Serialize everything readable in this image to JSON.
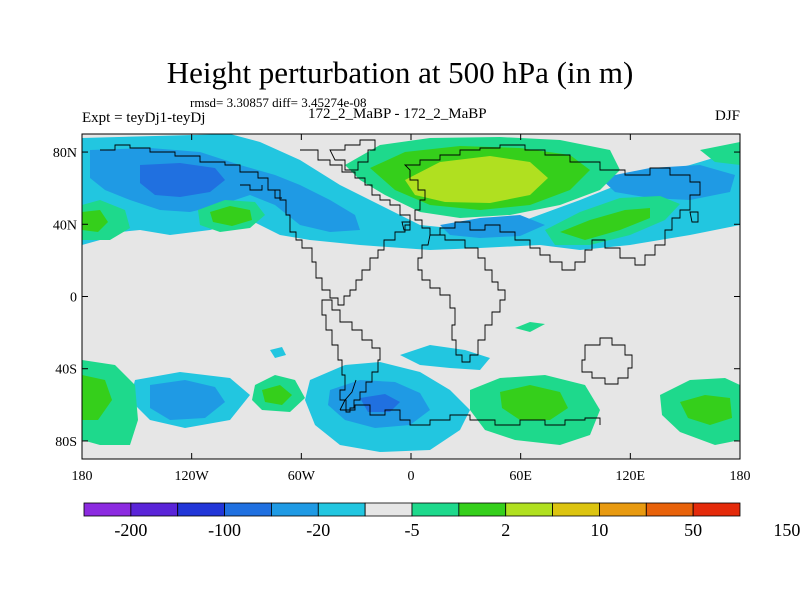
{
  "title": "Height perturbation at 500 hPa (in m)",
  "stats": "rmsd= 3.30857 diff= 3.45274e-08",
  "left_label": "Expt = teyDj1-teyDj",
  "center_label": "172_2_MaBP - 172_2_MaBP",
  "right_label": "DJF",
  "colors": {
    "background_field": "#e6e6e6",
    "coastline": "#000000"
  },
  "map": {
    "lon_range": [
      -180,
      180
    ],
    "lat_range": [
      -90,
      90
    ],
    "x_ticks": [
      {
        "value": -180,
        "label": "180"
      },
      {
        "value": -120,
        "label": "120W"
      },
      {
        "value": -60,
        "label": "60W"
      },
      {
        "value": 0,
        "label": "0"
      },
      {
        "value": 60,
        "label": "60E"
      },
      {
        "value": 120,
        "label": "120E"
      },
      {
        "value": 180,
        "label": "180"
      }
    ],
    "y_ticks": [
      {
        "value": 80,
        "label": "80N"
      },
      {
        "value": 40,
        "label": "40N"
      },
      {
        "value": 0,
        "label": "0"
      },
      {
        "value": -40,
        "label": "40S"
      },
      {
        "value": -80,
        "label": "80S"
      }
    ]
  },
  "colorbar": {
    "colors": [
      "#8c2be0",
      "#5a24d8",
      "#2236d8",
      "#2070e0",
      "#1f9ae4",
      "#22c6e0",
      "#e6e6e6",
      "#1ed98c",
      "#35cf1b",
      "#b0e020",
      "#dcc410",
      "#e89a10",
      "#e8620a",
      "#e42a0a"
    ],
    "labels": [
      {
        "after_box": 1,
        "text": "-200"
      },
      {
        "after_box": 3,
        "text": "-100"
      },
      {
        "after_box": 5,
        "text": "-20"
      },
      {
        "after_box": 7,
        "text": "-5"
      },
      {
        "after_box": 9,
        "text": "2"
      },
      {
        "after_box": 11,
        "text": "10"
      },
      {
        "after_box": 13,
        "text": "50"
      },
      {
        "after_box": 15,
        "text": "150"
      }
    ]
  }
}
